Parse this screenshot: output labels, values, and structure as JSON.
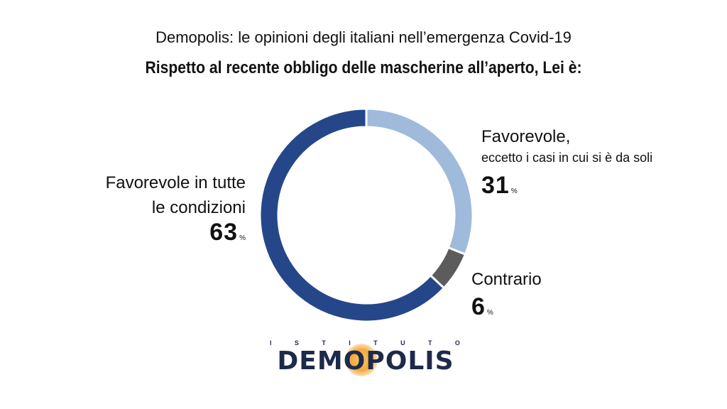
{
  "header": {
    "supertitle": "Demopolis: le opinioni degli italiani nell’emergenza Covid-19",
    "title": "Rispetto al recente obbligo delle mascherine all’aperto, Lei è:"
  },
  "chart_data": {
    "type": "pie",
    "donut": true,
    "categories": [
      "Favorevole, eccetto i casi in cui si è da soli",
      "Contrario",
      "Favorevole in tutte le condizioni"
    ],
    "values": [
      31,
      6,
      63
    ],
    "unit": "%",
    "colors": [
      "#9fbadb",
      "#5c5c5c",
      "#25478a"
    ],
    "labels": {
      "fav_except": {
        "line1": "Favorevole,",
        "line2": "eccetto i casi in cui si è da soli",
        "value": "31",
        "unit": "%"
      },
      "contrario": {
        "line1": "Contrario",
        "value": "6",
        "unit": "%"
      },
      "fav_all": {
        "line1": "Favorevole in tutte",
        "line2": "le condizioni",
        "value": "63",
        "unit": "%"
      }
    }
  },
  "logo": {
    "top_text": [
      "I",
      "S",
      "T",
      "I",
      "T",
      "U",
      "T",
      "O"
    ],
    "main_text": "DEMOPOLIS",
    "colors": {
      "text": "#1e2a4a",
      "sun": "#f2a93b"
    }
  }
}
